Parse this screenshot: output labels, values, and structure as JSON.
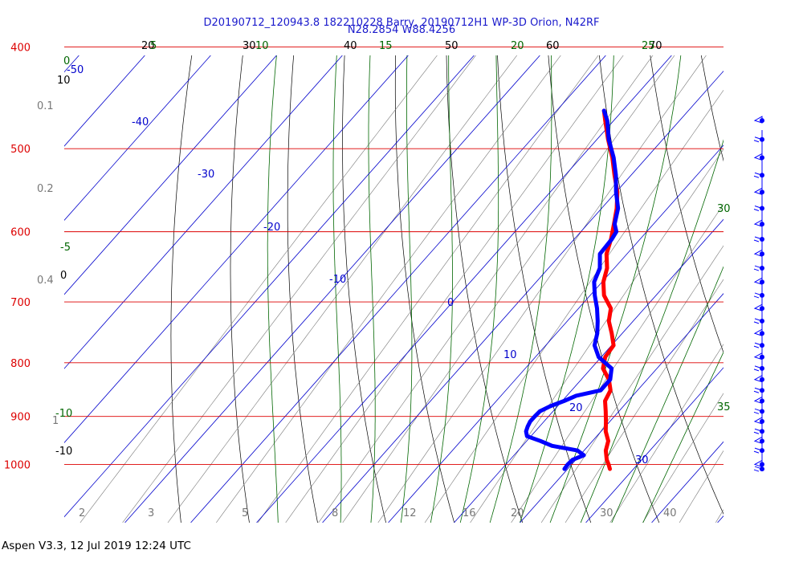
{
  "header": {
    "title_line1": "D20190712_120943.8 182210228 Barry, 20190712H1 WP-3D Orion, N42RF",
    "title_line2": "N28.2854 W88.4256"
  },
  "footer": {
    "text": "Aspen V3.3, 12 Jul 2019  12:24 UTC"
  },
  "colors": {
    "isobar": "#dd0000",
    "isotherm": "#0000cc",
    "dry_adiabat": "#000000",
    "moist_adiabat": "#006600",
    "mixing_ratio": "#777777",
    "temperature": "#ff0000",
    "dewpoint": "#0000ff",
    "wind": "#0000ff"
  },
  "chart_data": {
    "type": "skew-t",
    "title": "D20190712_120943.8 182210228 Barry, 20190712H1 WP-3D Orion, N42RF",
    "subtitle": "N28.2854 W88.4256",
    "pressure_range_hPa": [
      1020,
      400
    ],
    "isobars_hPa": [
      400,
      500,
      600,
      700,
      800,
      900,
      1000
    ],
    "isobar_labels": [
      "400",
      "500",
      "600",
      "700",
      "800",
      "900",
      "1000"
    ],
    "isotherms_C": [
      -50,
      -40,
      -30,
      -20,
      -10,
      0,
      10,
      20,
      30
    ],
    "isotherm_labels": [
      "-50",
      "-40",
      "-30",
      "-20",
      "-10",
      "0",
      "10",
      "20",
      "30"
    ],
    "dry_adiabat_labels": [
      "20",
      "30",
      "40",
      "50",
      "60",
      "70",
      "10",
      "0",
      "-10"
    ],
    "moist_adiabat_labels": [
      "5",
      "10",
      "15",
      "20",
      "25",
      "0",
      "-5",
      "-10",
      "30",
      "35"
    ],
    "mixing_ratio_labels": [
      "2",
      "3",
      "5",
      "8",
      "12",
      "16",
      "20",
      "30",
      "40",
      "0.1",
      "0.2",
      "0.4",
      "1"
    ],
    "series": [
      {
        "name": "temperature",
        "p": [
          1010,
          1000,
          990,
          970,
          950,
          930,
          910,
          890,
          870,
          850,
          830,
          810,
          790,
          770,
          750,
          730,
          710,
          690,
          670,
          650,
          630,
          610,
          590,
          570,
          550,
          530,
          510,
          490,
          470,
          460
        ],
        "T": [
          26.4,
          25.6,
          24.7,
          23.3,
          22.4,
          20.7,
          19.4,
          18.0,
          16.5,
          15.9,
          14.2,
          11.8,
          10.6,
          10.3,
          8.4,
          6.3,
          4.9,
          2.1,
          0.2,
          -1.1,
          -3.1,
          -4.4,
          -6.0,
          -7.7,
          -9.8,
          -12.5,
          -15.2,
          -18.3,
          -21.3,
          -22.8
        ]
      },
      {
        "name": "dewpoint",
        "p": [
          1010,
          1000,
          990,
          980,
          970,
          960,
          950,
          940,
          930,
          920,
          910,
          900,
          890,
          880,
          870,
          860,
          850,
          830,
          810,
          790,
          770,
          750,
          730,
          710,
          690,
          670,
          650,
          630,
          610,
          600,
          590,
          570,
          550,
          530,
          510,
          490,
          470,
          460
        ],
        "T": [
          19.5,
          19.4,
          19.5,
          20.6,
          19.0,
          14.5,
          12.1,
          9.4,
          8.6,
          8.2,
          7.9,
          7.9,
          8.0,
          8.9,
          10.3,
          11.4,
          14.4,
          14.4,
          13.1,
          9.6,
          7.4,
          6.2,
          4.6,
          2.8,
          0.7,
          -1.2,
          -2.2,
          -4.1,
          -4.3,
          -4.6,
          -5.9,
          -7.5,
          -10.0,
          -12.3,
          -15.0,
          -18.2,
          -21.0,
          -22.8
        ]
      }
    ],
    "wind_levels_hPa": [
      1010,
      1000,
      970,
      950,
      930,
      910,
      890,
      870,
      850,
      830,
      810,
      790,
      770,
      750,
      730,
      710,
      690,
      670,
      650,
      630,
      610,
      590,
      570,
      550,
      530,
      510,
      490,
      470
    ]
  }
}
